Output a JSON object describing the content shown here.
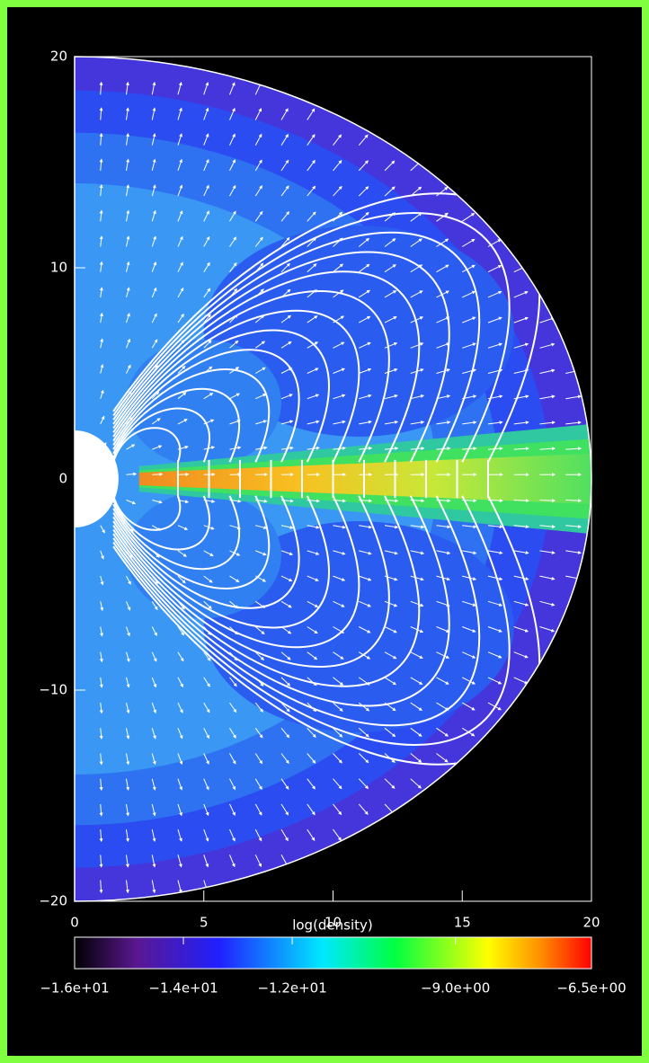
{
  "chart_data": {
    "type": "contour",
    "colorbar_title": "log(density)",
    "xlim": [
      0,
      20
    ],
    "ylim": [
      -20,
      20
    ],
    "xticks": [
      0,
      5,
      10,
      15,
      20
    ],
    "yticks": [
      {
        "value": -20,
        "label": "−20"
      },
      {
        "value": -10,
        "label": "−10"
      },
      0,
      10,
      20
    ],
    "clim": [
      -16,
      -6.5
    ],
    "cticks": [
      {
        "value": -16,
        "label": "−1.6e+01"
      },
      {
        "value": -14,
        "label": "−1.4e+01"
      },
      {
        "value": -12,
        "label": "−1.2e+01"
      },
      {
        "value": -9,
        "label": "−9.0e+00"
      },
      {
        "value": -6.5,
        "label": "−6.5e+00"
      }
    ]
  }
}
